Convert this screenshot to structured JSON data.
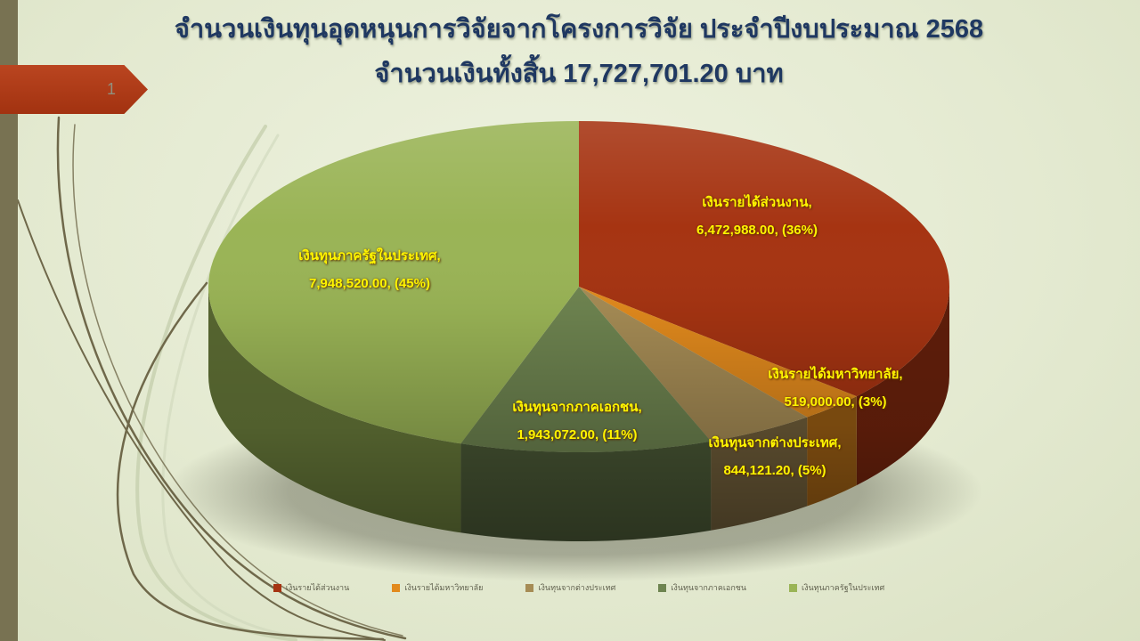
{
  "slide": {
    "page_number": "1",
    "title_line1": "จำนวนเงินทุนอุดหนุนการวิจัยจากโครงการวิจัย ประจำปีงบประมาณ 2568",
    "title_line2": "จำนวนเงินทั้งสิ้น  17,727,701.20  บาท"
  },
  "chart_data": {
    "type": "pie",
    "style": "3d",
    "title": "จำนวนเงินทุนอุดหนุนการวิจัยจากโครงการวิจัย ประจำปีงบประมาณ 2568",
    "subtitle": "จำนวนเงินทั้งสิ้น 17,727,701.20 บาท",
    "total": 17727701.2,
    "total_unit": "บาท",
    "categories": [
      "เงินรายได้ส่วนงาน",
      "เงินรายได้มหาวิทยาลัย",
      "เงินทุนจากต่างประเทศ",
      "เงินทุนจากภาคเอกชน",
      "เงินทุนภาครัฐในประเทศ"
    ],
    "values": [
      6472988.0,
      519000.0,
      844121.2,
      1943072.0,
      7948520.0
    ],
    "percents": [
      36,
      3,
      5,
      11,
      45
    ],
    "colors": [
      "#A63412",
      "#E28A1D",
      "#A68C55",
      "#6E8450",
      "#9AB456"
    ],
    "start_angle_deg": 0,
    "direction": "clockwise",
    "legend_position": "bottom",
    "labels": [
      {
        "name": "เงินรายได้ส่วนงาน,",
        "value": "6,472,988.00, (36%)"
      },
      {
        "name": "เงินรายได้มหาวิทยาลัย,",
        "value": "519,000.00, (3%)"
      },
      {
        "name": "เงินทุนจากต่างประเทศ,",
        "value": "844,121.20, (5%)"
      },
      {
        "name": "เงินทุนจากภาคเอกชน,",
        "value": "1,943,072.00, (11%)"
      },
      {
        "name": "เงินทุนภาครัฐในประเทศ,",
        "value": "7,948,520.00, (45%)"
      }
    ]
  }
}
